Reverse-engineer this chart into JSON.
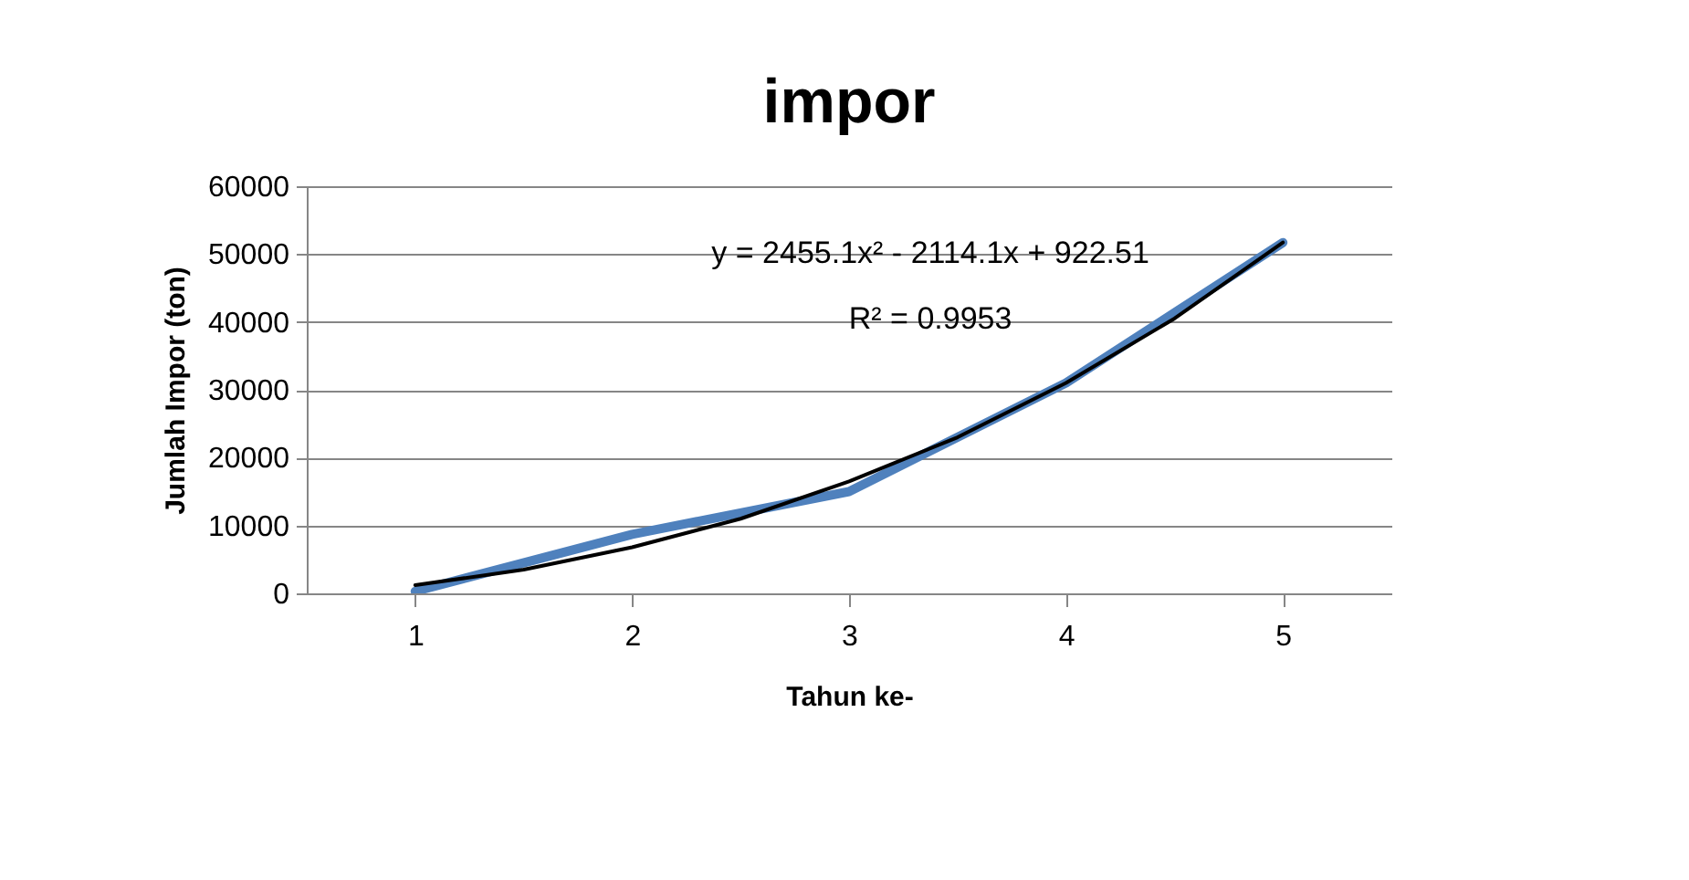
{
  "chart_data": {
    "type": "line",
    "title": "impor",
    "xlabel": "Tahun ke-",
    "ylabel": "Jumlah Impor (ton)",
    "x": [
      1,
      2,
      3,
      4,
      5
    ],
    "series": [
      {
        "color": "#4f81bd",
        "values": [
          300,
          8700,
          15000,
          31000,
          51700
        ]
      },
      {
        "type": "line",
        "color": "#000000",
        "x": [
          1,
          1.5,
          2,
          2.5,
          3,
          3.5,
          4,
          4.5,
          5
        ],
        "values": [
          1200,
          3500,
          6800,
          11000,
          16500,
          23000,
          31000,
          40500,
          51700
        ]
      }
    ],
    "xlim": [
      0.5,
      5.5
    ],
    "xticks": [
      1,
      2,
      3,
      4,
      5
    ],
    "ylim": [
      0,
      60000
    ],
    "yticks": [
      0,
      10000,
      20000,
      30000,
      40000,
      50000,
      60000
    ],
    "grid": "y",
    "marker": "none",
    "line_style": "solid",
    "annotations": [
      "y = 2455.1x² - 2114.1x + 922.51",
      "R² = 0.9953"
    ]
  }
}
